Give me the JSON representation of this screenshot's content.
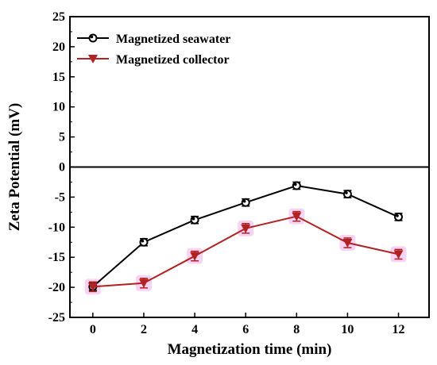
{
  "chart_data": {
    "type": "line",
    "title": "",
    "xlabel": "Magnetization time (min)",
    "ylabel": "Zeta Potential (mV)",
    "xlim": [
      -0.9,
      13.2
    ],
    "ylim": [
      -25,
      25
    ],
    "x": [
      0,
      2,
      4,
      6,
      8,
      10,
      12
    ],
    "xticks": [
      "0",
      "2",
      "4",
      "6",
      "8",
      "10",
      "12"
    ],
    "yticks": [
      "-25",
      "-20",
      "-15",
      "-10",
      "-5",
      "0",
      "5",
      "10",
      "15",
      "20",
      "25"
    ],
    "grid": false,
    "zero_line": true,
    "legend_position": "top-left",
    "series": [
      {
        "name": "Magnetized seawater",
        "values": [
          -19.9,
          -12.5,
          -8.8,
          -5.9,
          -3.1,
          -4.5,
          -8.3
        ],
        "errors": [
          0.6,
          0.6,
          0.6,
          0.6,
          0.6,
          0.6,
          0.6
        ],
        "color": "#000000",
        "marker": "circle"
      },
      {
        "name": "Magnetized collector",
        "values": [
          -19.9,
          -19.3,
          -14.8,
          -10.2,
          -8.2,
          -12.6,
          -14.5
        ],
        "errors": [
          0.8,
          0.8,
          0.8,
          0.8,
          0.8,
          0.8,
          0.8
        ],
        "color": "#b22222",
        "marker": "triangle-down"
      }
    ]
  }
}
